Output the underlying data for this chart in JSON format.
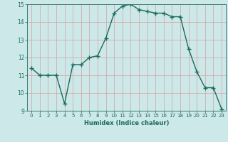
{
  "x": [
    0,
    1,
    2,
    3,
    4,
    5,
    6,
    7,
    8,
    9,
    10,
    11,
    12,
    13,
    14,
    15,
    16,
    17,
    18,
    19,
    20,
    21,
    22,
    23
  ],
  "y": [
    11.4,
    11.0,
    11.0,
    11.0,
    9.4,
    11.6,
    11.6,
    12.0,
    12.1,
    13.1,
    14.5,
    14.9,
    15.0,
    14.7,
    14.6,
    14.5,
    14.5,
    14.3,
    14.3,
    12.5,
    11.2,
    10.3,
    10.3,
    9.1
  ],
  "xlim": [
    -0.5,
    23.5
  ],
  "ylim": [
    9,
    15
  ],
  "yticks": [
    9,
    10,
    11,
    12,
    13,
    14,
    15
  ],
  "xticks": [
    0,
    1,
    2,
    3,
    4,
    5,
    6,
    7,
    8,
    9,
    10,
    11,
    12,
    13,
    14,
    15,
    16,
    17,
    18,
    19,
    20,
    21,
    22,
    23
  ],
  "xlabel": "Humidex (Indice chaleur)",
  "line_color": "#1a6b5e",
  "bg_color": "#cce8e8",
  "grid_color": "#d9a0a0",
  "marker": "+",
  "marker_size": 4,
  "linewidth": 1.0
}
